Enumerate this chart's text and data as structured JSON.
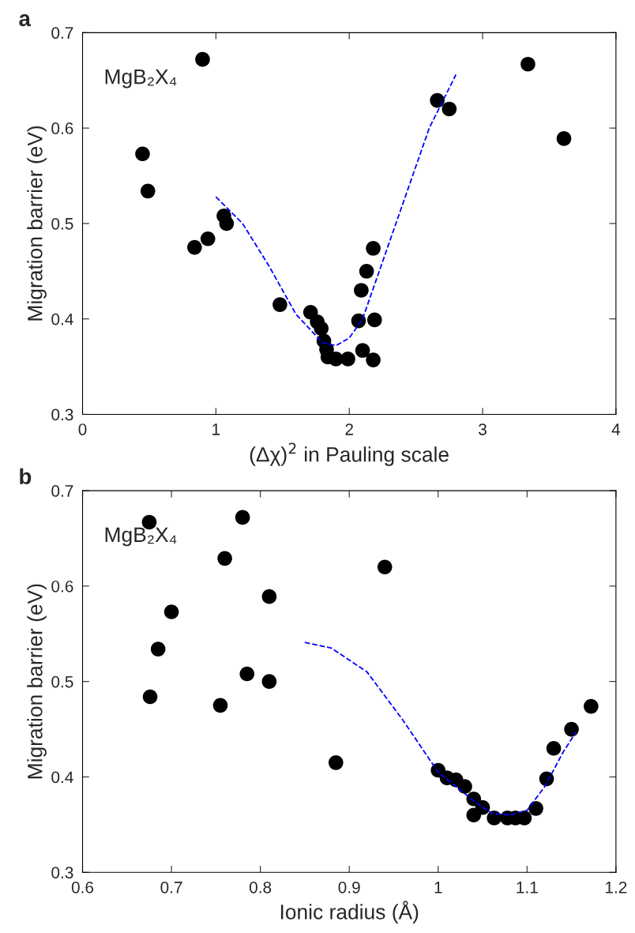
{
  "chart_data": [
    {
      "type": "scatter",
      "title": "a",
      "xlabel": "(Δχ)$^{2}$ in Pauling scale",
      "ylabel": "Migration barrier (eV)",
      "annotations": [
        "MgB₂X₄"
      ],
      "xlim": [
        0,
        4
      ],
      "xticks": [
        0,
        1,
        2,
        3,
        4
      ],
      "ylim": [
        0.3,
        0.7
      ],
      "yticks": [
        0.3,
        0.4,
        0.5,
        0.6,
        0.7
      ],
      "grid": false,
      "legend": false,
      "series": [
        {
          "color": "#000000",
          "marker": "circle",
          "x": [
            0.45,
            0.49,
            0.84,
            0.9,
            0.94,
            1.06,
            1.08,
            1.48,
            1.71,
            1.76,
            1.79,
            1.81,
            1.83,
            1.84,
            1.9,
            1.99,
            2.07,
            2.09,
            2.1,
            2.13,
            2.18,
            2.19,
            2.18,
            2.66,
            2.75,
            3.34,
            3.61
          ],
          "values": [
            0.573,
            0.534,
            0.475,
            0.672,
            0.484,
            0.508,
            0.5,
            0.415,
            0.407,
            0.397,
            0.39,
            0.377,
            0.368,
            0.36,
            0.358,
            0.358,
            0.398,
            0.43,
            0.367,
            0.45,
            0.474,
            0.399,
            0.357,
            0.629,
            0.62,
            0.667,
            0.589
          ]
        },
        {
          "type": "line",
          "color": "#0000ff",
          "line_style": "dashed",
          "marker": "none",
          "x": [
            1.0,
            1.2,
            1.4,
            1.6,
            1.8,
            1.9,
            2.0,
            2.1,
            2.2,
            2.4,
            2.6,
            2.8
          ],
          "values": [
            0.528,
            0.5,
            0.455,
            0.405,
            0.375,
            0.372,
            0.38,
            0.4,
            0.44,
            0.52,
            0.6,
            0.656
          ]
        }
      ]
    },
    {
      "type": "scatter",
      "title": "b",
      "xlabel": "Ionic radius (Å)",
      "ylabel": "Migration barrier (eV)",
      "annotations": [
        "MgB₂X₄"
      ],
      "xlim": [
        0.6,
        1.2
      ],
      "xticks": [
        0.6,
        0.7,
        0.8,
        0.9,
        1,
        1.1,
        1.2
      ],
      "ylim": [
        0.3,
        0.7
      ],
      "yticks": [
        0.3,
        0.4,
        0.5,
        0.6,
        0.7
      ],
      "grid": false,
      "legend": false,
      "series": [
        {
          "color": "#000000",
          "marker": "circle",
          "x": [
            0.675,
            0.676,
            0.685,
            0.7,
            0.755,
            0.76,
            0.78,
            0.785,
            0.81,
            0.81,
            0.885,
            0.94,
            1.0,
            1.01,
            1.02,
            1.03,
            1.04,
            1.04,
            1.05,
            1.063,
            1.078,
            1.087,
            1.097,
            1.11,
            1.122,
            1.13,
            1.15,
            1.172
          ],
          "values": [
            0.667,
            0.484,
            0.534,
            0.573,
            0.475,
            0.629,
            0.672,
            0.508,
            0.589,
            0.5,
            0.415,
            0.62,
            0.407,
            0.399,
            0.397,
            0.39,
            0.377,
            0.36,
            0.368,
            0.357,
            0.357,
            0.357,
            0.357,
            0.367,
            0.398,
            0.43,
            0.45,
            0.474
          ]
        },
        {
          "type": "line",
          "color": "#0000ff",
          "line_style": "dashed",
          "marker": "none",
          "x": [
            0.85,
            0.88,
            0.92,
            0.96,
            1.0,
            1.04,
            1.06,
            1.08,
            1.1,
            1.12,
            1.14,
            1.155
          ],
          "values": [
            0.541,
            0.535,
            0.51,
            0.46,
            0.405,
            0.375,
            0.362,
            0.36,
            0.365,
            0.39,
            0.425,
            0.447
          ]
        }
      ]
    }
  ]
}
